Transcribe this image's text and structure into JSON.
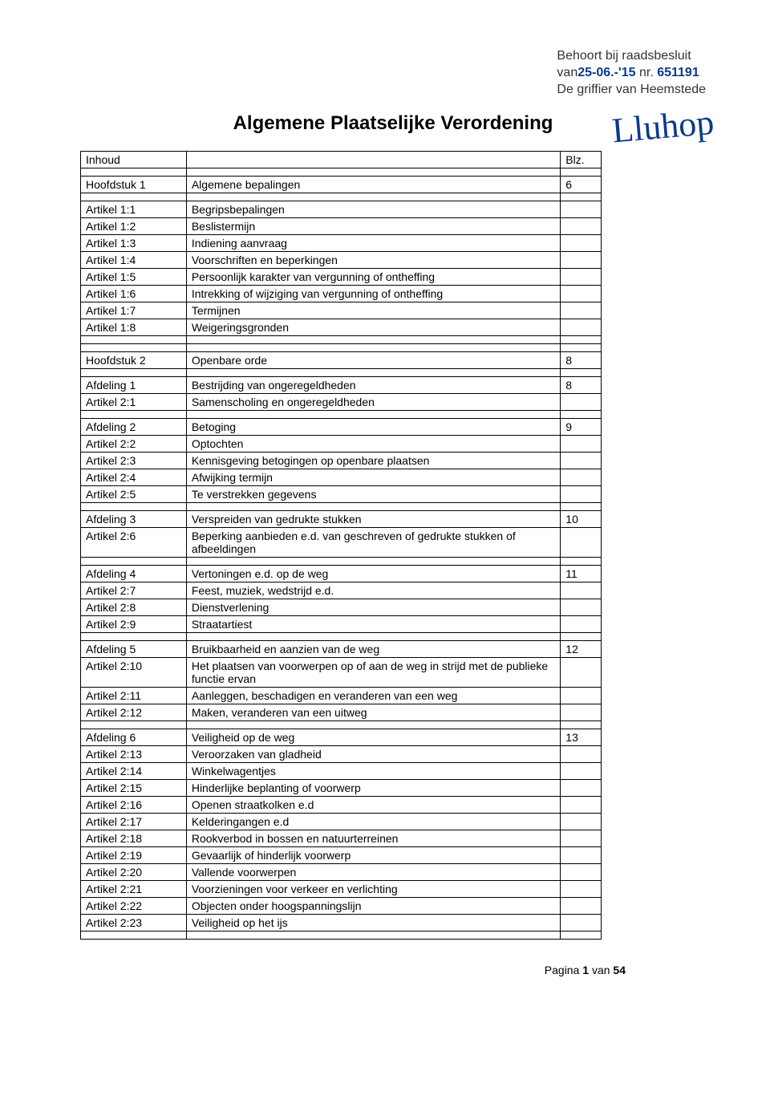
{
  "header": {
    "line1_prefix": "Behoort bij raadsbesluit",
    "line2_prefix": "van",
    "line2_date_hand": "25-06.-'15",
    "line2_nr": "nr.",
    "line2_nr_hand": "651191",
    "line3": "De griffier van Heemstede",
    "signature": "Lluhop"
  },
  "title": "Algemene Plaatselijke Verordening",
  "columns": {
    "left": "Inhoud",
    "right": "Blz."
  },
  "rows": [
    {
      "a": "Inhoud",
      "b": "",
      "c": "Blz.",
      "type": "header"
    },
    {
      "type": "spacer"
    },
    {
      "a": "Hoofdstuk 1",
      "b": "Algemene bepalingen",
      "c": "6"
    },
    {
      "type": "spacer"
    },
    {
      "a": "Artikel 1:1",
      "b": "Begripsbepalingen",
      "c": ""
    },
    {
      "a": "Artikel 1:2",
      "b": "Beslistermijn",
      "c": ""
    },
    {
      "a": "Artikel 1:3",
      "b": "Indiening aanvraag",
      "c": ""
    },
    {
      "a": "Artikel 1:4",
      "b": "Voorschriften en beperkingen",
      "c": ""
    },
    {
      "a": "Artikel 1:5",
      "b": "Persoonlijk karakter van vergunning of ontheffing",
      "c": ""
    },
    {
      "a": "Artikel 1:6",
      "b": "Intrekking of wijziging van vergunning of ontheffing",
      "c": ""
    },
    {
      "a": "Artikel 1:7",
      "b": "Termijnen",
      "c": ""
    },
    {
      "a": "Artikel 1:8",
      "b": "Weigeringsgronden",
      "c": ""
    },
    {
      "type": "spacer"
    },
    {
      "type": "spacer"
    },
    {
      "a": "Hoofdstuk 2",
      "b": "Openbare orde",
      "c": "8"
    },
    {
      "type": "spacer"
    },
    {
      "a": "Afdeling 1",
      "b": "Bestrijding van ongeregeldheden",
      "c": "8"
    },
    {
      "a": "Artikel 2:1",
      "b": "Samenscholing en ongeregeldheden",
      "c": ""
    },
    {
      "type": "spacer"
    },
    {
      "a": "Afdeling 2",
      "b": "Betoging",
      "c": "9"
    },
    {
      "a": "Artikel 2:2",
      "b": "Optochten",
      "c": ""
    },
    {
      "a": "Artikel 2:3",
      "b": "Kennisgeving betogingen op openbare plaatsen",
      "c": ""
    },
    {
      "a": "Artikel 2:4",
      "b": "Afwijking termijn",
      "c": ""
    },
    {
      "a": "Artikel 2:5",
      "b": "Te verstrekken gegevens",
      "c": ""
    },
    {
      "type": "spacer"
    },
    {
      "a": "Afdeling 3",
      "b": "Verspreiden van gedrukte stukken",
      "c": "10"
    },
    {
      "a": "Artikel 2:6",
      "b": "Beperking aanbieden e.d. van geschreven of gedrukte stukken of afbeeldingen",
      "c": ""
    },
    {
      "type": "spacer"
    },
    {
      "a": "Afdeling 4",
      "b": "Vertoningen e.d. op de weg",
      "c": "11"
    },
    {
      "a": "Artikel 2:7",
      "b": "Feest, muziek, wedstrijd e.d.",
      "c": ""
    },
    {
      "a": "Artikel 2:8",
      "b": "Dienstverlening",
      "c": ""
    },
    {
      "a": "Artikel 2:9",
      "b": "Straatartiest",
      "c": ""
    },
    {
      "type": "spacer"
    },
    {
      "a": "Afdeling 5",
      "b": "Bruikbaarheid en aanzien van de weg",
      "c": "12"
    },
    {
      "a": "Artikel 2:10",
      "b": "Het plaatsen van voorwerpen op of aan de weg in strijd met de publieke functie ervan",
      "c": ""
    },
    {
      "a": "Artikel 2:11",
      "b": "Aanleggen, beschadigen en veranderen van een weg",
      "c": ""
    },
    {
      "a": "Artikel 2:12",
      "b": "Maken, veranderen van een uitweg",
      "c": ""
    },
    {
      "type": "spacer"
    },
    {
      "a": "Afdeling 6",
      "b": "Veiligheid op de weg",
      "c": "13"
    },
    {
      "a": "Artikel 2:13",
      "b": "Veroorzaken van gladheid",
      "c": ""
    },
    {
      "a": "Artikel 2:14",
      "b": "Winkelwagentjes",
      "c": ""
    },
    {
      "a": "Artikel 2:15",
      "b": "Hinderlijke beplanting of voorwerp",
      "c": ""
    },
    {
      "a": "Artikel 2:16",
      "b": "Openen straatkolken e.d",
      "c": ""
    },
    {
      "a": "Artikel 2:17",
      "b": "Kelderingangen e.d",
      "c": ""
    },
    {
      "a": "Artikel 2:18",
      "b": "Rookverbod in bossen en natuurterreinen",
      "c": ""
    },
    {
      "a": "Artikel 2:19",
      "b": "Gevaarlijk of hinderlijk voorwerp",
      "c": ""
    },
    {
      "a": "Artikel 2:20",
      "b": "Vallende voorwerpen",
      "c": ""
    },
    {
      "a": "Artikel 2:21",
      "b": "Voorzieningen voor verkeer en verlichting",
      "c": ""
    },
    {
      "a": "Artikel 2:22",
      "b": "Objecten onder hoogspanningslijn",
      "c": ""
    },
    {
      "a": "Artikel 2:23",
      "b": "Veiligheid op het ijs",
      "c": ""
    },
    {
      "type": "spacer"
    }
  ],
  "footer": {
    "prefix": "Pagina ",
    "page": "1",
    "mid": " van ",
    "total": "54"
  }
}
